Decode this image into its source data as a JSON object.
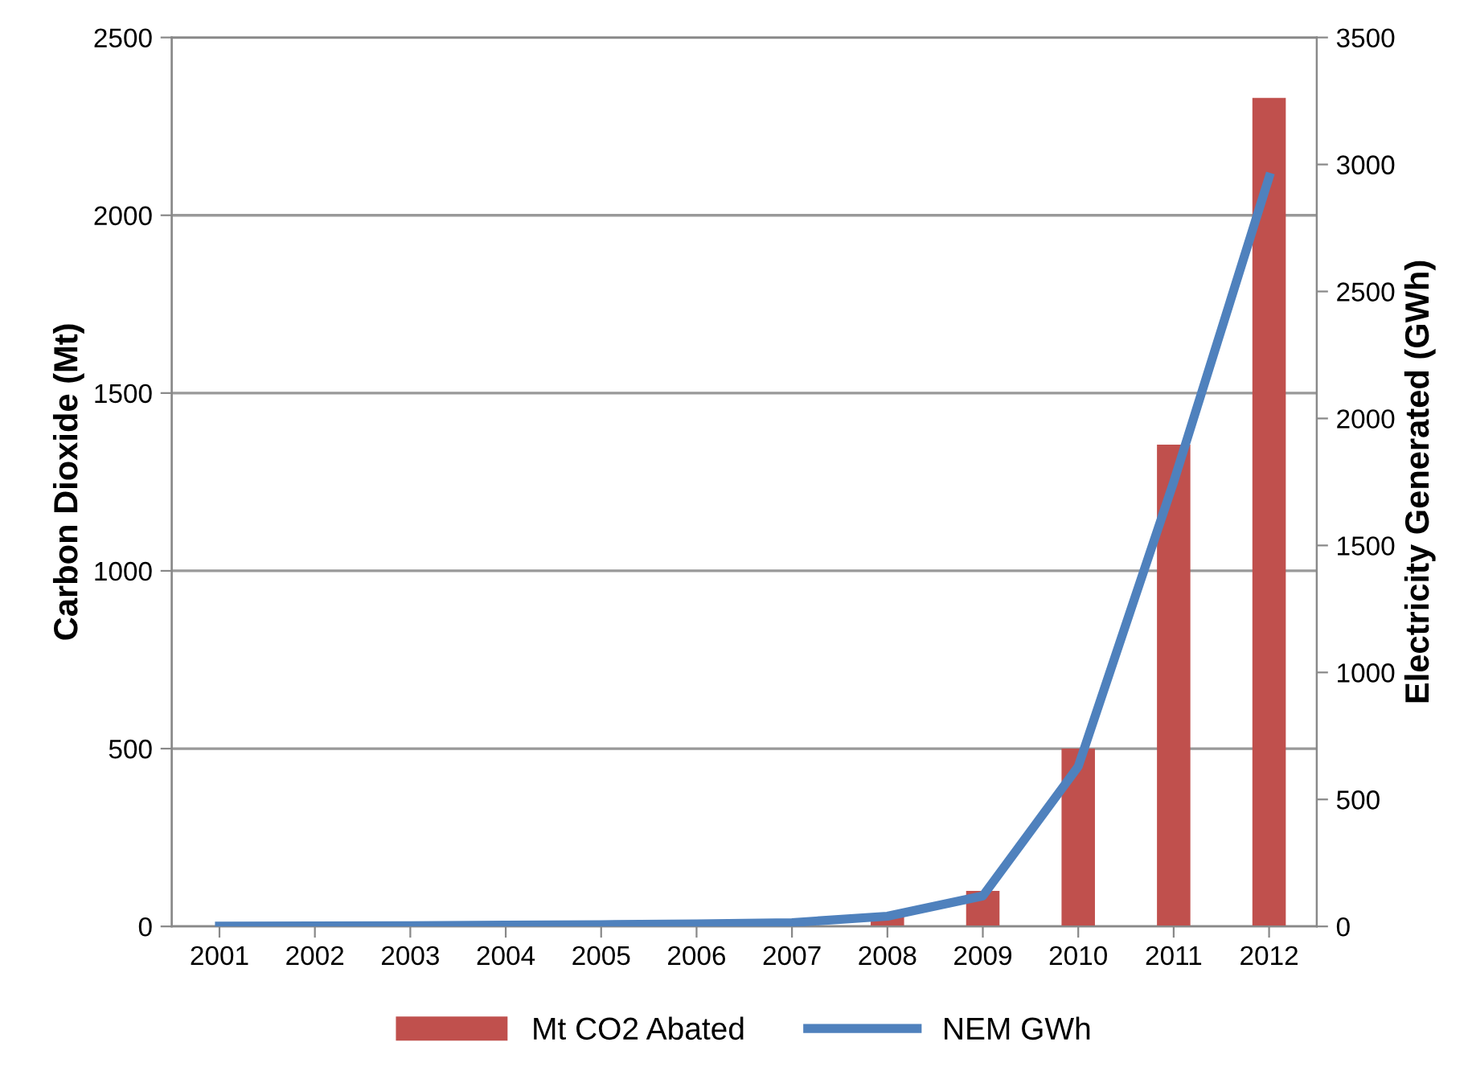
{
  "chart_data": {
    "type": "bar",
    "categories": [
      "2001",
      "2002",
      "2003",
      "2004",
      "2005",
      "2006",
      "2007",
      "2008",
      "2009",
      "2010",
      "2011",
      "2012"
    ],
    "ylabel": "Carbon Dioxide (Mt)",
    "y2label": "Electricity Generated (GWh)",
    "series": [
      {
        "name": "Mt CO2 Abated",
        "color": "#c0504d",
        "values": [
          0,
          0,
          0,
          0,
          0,
          0,
          0,
          30,
          100,
          500,
          1355,
          2330
        ]
      },
      {
        "name": "NEM GWh",
        "type": "line",
        "axis": "y2",
        "color": "#4f81bd",
        "values": [
          1,
          2,
          3,
          5,
          7,
          10,
          15,
          40,
          120,
          630,
          1750,
          2950
        ]
      }
    ],
    "ylim": [
      0,
      2500
    ],
    "yticks": [
      0,
      500,
      1000,
      1500,
      2000,
      2500
    ],
    "y2lim": [
      0,
      3500
    ],
    "y2ticks": [
      0,
      500,
      1000,
      1500,
      2000,
      2500,
      3000,
      3500
    ],
    "grid": "y",
    "legend": "bottom",
    "marker": "none",
    "line_style": "solid"
  }
}
